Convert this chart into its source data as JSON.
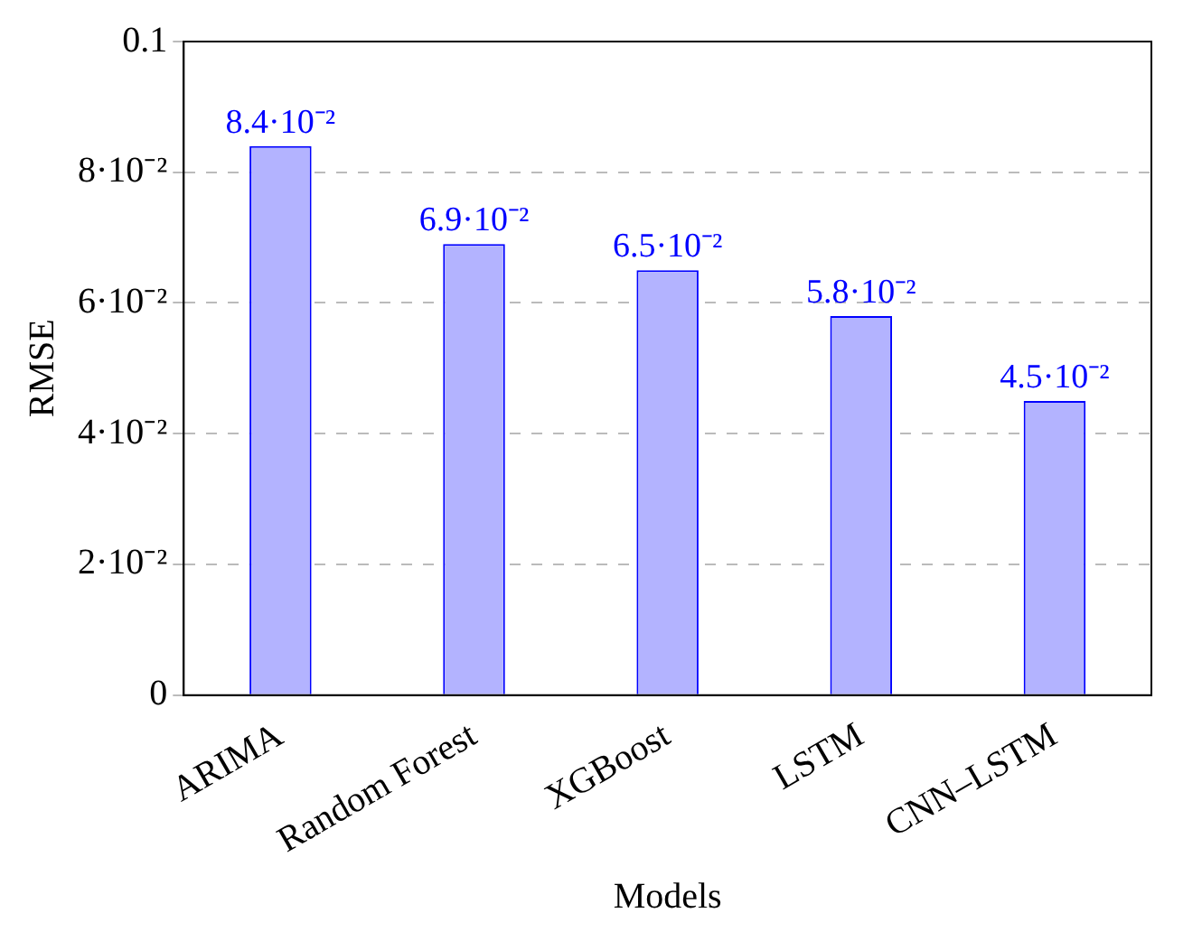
{
  "chart_data": {
    "type": "bar",
    "xlabel": "Models",
    "ylabel": "RMSE",
    "categories": [
      "ARIMA",
      "Random Forest",
      "XGBoost",
      "LSTM",
      "CNN–LSTM"
    ],
    "values": [
      0.084,
      0.069,
      0.065,
      0.058,
      0.045
    ],
    "value_labels": [
      "8.4·10⁻²",
      "6.9·10⁻²",
      "6.5·10⁻²",
      "5.8·10⁻²",
      "4.5·10⁻²"
    ],
    "color": "#b3b3ff",
    "ylim": [
      0,
      0.1
    ],
    "yticks": [
      0,
      {
        "value": 0.02,
        "label": "2·10⁻²"
      },
      {
        "value": 0.04,
        "label": "4·10⁻²"
      },
      {
        "value": 0.06,
        "label": "6·10⁻²"
      },
      {
        "value": 0.08,
        "label": "8·10⁻²"
      },
      0.1
    ],
    "grid": "y",
    "legend": false
  }
}
